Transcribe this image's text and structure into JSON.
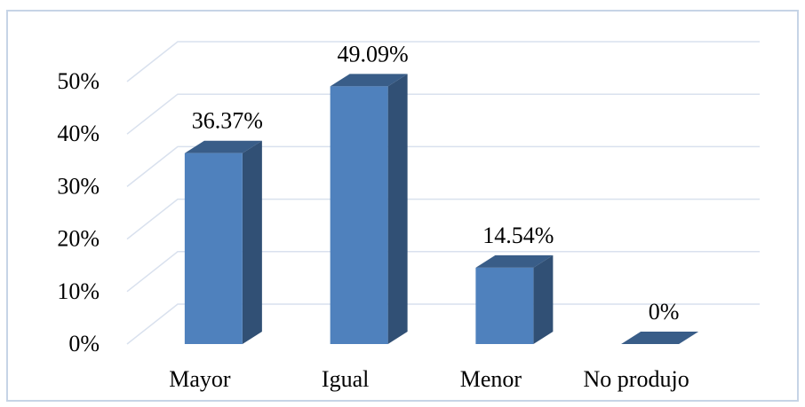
{
  "chart_data": {
    "type": "bar",
    "categories": [
      "Mayor",
      "Igual",
      "Menor",
      "No produjo"
    ],
    "values": [
      36.37,
      49.09,
      14.54,
      0
    ],
    "value_labels": [
      "36.37%",
      "49.09%",
      "14.54%",
      "0%"
    ],
    "color": "#4f81bd",
    "ylim": [
      0,
      50
    ],
    "yticks": [
      {
        "value": 0,
        "label": "0%"
      },
      {
        "value": 10,
        "label": "10%"
      },
      {
        "value": 20,
        "label": "20%"
      },
      {
        "value": 30,
        "label": "30%"
      },
      {
        "value": 40,
        "label": "40%"
      },
      {
        "value": 50,
        "label": "50%"
      }
    ],
    "grid": true
  }
}
